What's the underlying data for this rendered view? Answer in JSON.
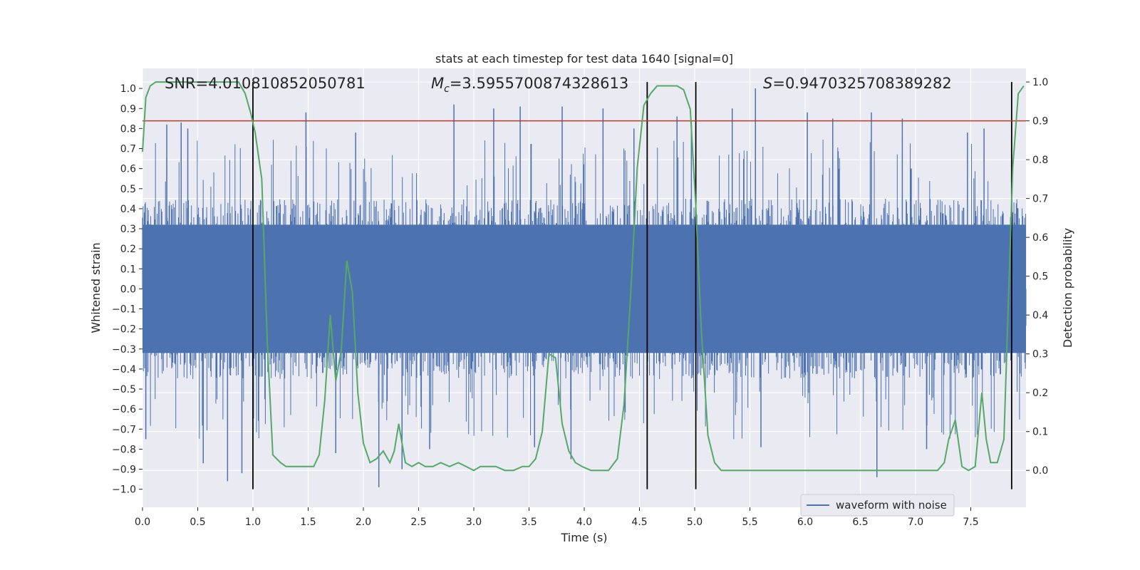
{
  "chart_data": {
    "type": "line",
    "title": "stats at each timestep for test data 1640 [signal=0]",
    "xlabel": "Time (s)",
    "ylabel_left": "Whitened strain",
    "ylabel_right": "Detection probability",
    "xlim": [
      0,
      8
    ],
    "ylim_left": [
      -1.09,
      1.1
    ],
    "ylim_right": [
      -0.095,
      1.035
    ],
    "x_ticks": [
      0.0,
      0.5,
      1.0,
      1.5,
      2.0,
      2.5,
      3.0,
      3.5,
      4.0,
      4.5,
      5.0,
      5.5,
      6.0,
      6.5,
      7.0,
      7.5
    ],
    "x_tick_labels": [
      "0.0",
      "0.5",
      "1.0",
      "1.5",
      "2.0",
      "2.5",
      "3.0",
      "3.5",
      "4.0",
      "4.5",
      "5.0",
      "5.5",
      "6.0",
      "6.5",
      "7.0",
      "7.5"
    ],
    "y_ticks_left": [
      1.0,
      0.9,
      0.8,
      0.7,
      0.6,
      0.5,
      0.4,
      0.3,
      0.2,
      0.1,
      0.0,
      -0.1,
      -0.2,
      -0.3,
      -0.4,
      -0.5,
      -0.6,
      -0.7,
      -0.8,
      -0.9,
      -1.0
    ],
    "y_tick_labels_left": [
      "1.0",
      "0.9",
      "0.8",
      "0.7",
      "0.6",
      "0.5",
      "0.4",
      "0.3",
      "0.2",
      "0.1",
      "0.0",
      "−0.1",
      "−0.2",
      "−0.3",
      "−0.4",
      "−0.5",
      "−0.6",
      "−0.7",
      "−0.8",
      "−0.9",
      "−1.0"
    ],
    "y_ticks_right": [
      1.0,
      0.9,
      0.8,
      0.7,
      0.6,
      0.5,
      0.4,
      0.3,
      0.2,
      0.1,
      0.0
    ],
    "y_tick_labels_right": [
      "1.0",
      "0.9",
      "0.8",
      "0.7",
      "0.6",
      "0.5",
      "0.4",
      "0.3",
      "0.2",
      "0.1",
      "0.0"
    ],
    "grid": true,
    "threshold": {
      "value_right": 0.9,
      "color": "#c0392b"
    },
    "vertical_lines_x": [
      1.0,
      4.57,
      5.01,
      7.87
    ],
    "annotations": {
      "snr": "SNR=4.010810852050781",
      "mc_symbol": "M",
      "mc_sub": "c",
      "mc_value": "=3.5955700874328613",
      "s_symbol": "S",
      "s_value": "=0.9470325708389282"
    },
    "legend": {
      "entries": [
        "waveform with noise"
      ],
      "location": "lower-right"
    },
    "series": [
      {
        "name": "waveform with noise",
        "color": "#4c72b0",
        "description": "whitened strain, noise-like, envelope approx ±0.45 with spikes up to ±1.0",
        "x_range": [
          0.0,
          8.0
        ],
        "amplitude_typical": 0.45,
        "spikes": [
          [
            0.03,
            -0.75
          ],
          [
            0.22,
            0.82
          ],
          [
            0.35,
            0.83
          ],
          [
            0.41,
            0.8
          ],
          [
            0.55,
            -0.87
          ],
          [
            0.77,
            -0.96
          ],
          [
            0.9,
            -0.92
          ],
          [
            1.48,
            0.88
          ],
          [
            1.75,
            -0.82
          ],
          [
            1.93,
            0.78
          ],
          [
            2.14,
            -0.99
          ],
          [
            2.35,
            -0.9
          ],
          [
            2.6,
            -0.8
          ],
          [
            2.82,
            0.92
          ],
          [
            3.18,
            0.9
          ],
          [
            3.42,
            0.91
          ],
          [
            3.55,
            -0.79
          ],
          [
            3.8,
            0.91
          ],
          [
            3.88,
            -0.85
          ],
          [
            4.17,
            0.9
          ],
          [
            4.45,
            0.8
          ],
          [
            4.84,
            0.86
          ],
          [
            4.97,
            0.84
          ],
          [
            5.34,
            0.9
          ],
          [
            5.55,
            1.0
          ],
          [
            5.6,
            -0.79
          ],
          [
            6.02,
            0.88
          ],
          [
            6.25,
            0.85
          ],
          [
            6.6,
            0.88
          ],
          [
            6.65,
            -0.94
          ],
          [
            6.88,
            0.85
          ],
          [
            7.1,
            -0.8
          ],
          [
            7.47,
            0.78
          ],
          [
            7.62,
            0.8
          ]
        ]
      },
      {
        "name": "detection probability",
        "color": "#55a868",
        "axis": "right",
        "x": [
          0.0,
          0.03,
          0.07,
          0.12,
          0.2,
          0.3,
          0.4,
          0.5,
          0.6,
          0.7,
          0.8,
          0.87,
          0.93,
          0.98,
          1.02,
          1.08,
          1.13,
          1.18,
          1.25,
          1.3,
          1.35,
          1.4,
          1.45,
          1.5,
          1.55,
          1.6,
          1.65,
          1.7,
          1.75,
          1.8,
          1.85,
          1.9,
          1.95,
          2.0,
          2.06,
          2.12,
          2.18,
          2.24,
          2.28,
          2.32,
          2.38,
          2.44,
          2.5,
          2.56,
          2.63,
          2.7,
          2.78,
          2.86,
          2.93,
          3.0,
          3.06,
          3.13,
          3.2,
          3.28,
          3.36,
          3.44,
          3.5,
          3.56,
          3.62,
          3.68,
          3.74,
          3.8,
          3.86,
          3.92,
          3.98,
          4.06,
          4.14,
          4.22,
          4.3,
          4.36,
          4.42,
          4.48,
          4.54,
          4.6,
          4.66,
          4.72,
          4.78,
          4.84,
          4.9,
          4.96,
          5.01,
          5.06,
          5.12,
          5.18,
          5.24,
          5.3,
          5.4,
          5.6,
          5.8,
          6.0,
          6.2,
          6.4,
          6.6,
          6.8,
          7.0,
          7.1,
          7.2,
          7.26,
          7.3,
          7.36,
          7.42,
          7.48,
          7.54,
          7.6,
          7.64,
          7.68,
          7.74,
          7.8,
          7.84,
          7.88,
          7.93,
          7.98
        ],
        "y": [
          0.82,
          0.96,
          0.99,
          1.0,
          1.0,
          1.0,
          1.0,
          1.0,
          1.0,
          1.0,
          1.0,
          1.0,
          0.97,
          0.92,
          0.87,
          0.75,
          0.33,
          0.04,
          0.02,
          0.01,
          0.01,
          0.01,
          0.01,
          0.01,
          0.01,
          0.04,
          0.18,
          0.4,
          0.23,
          0.31,
          0.54,
          0.46,
          0.2,
          0.07,
          0.02,
          0.03,
          0.05,
          0.02,
          0.05,
          0.12,
          0.02,
          0.01,
          0.02,
          0.01,
          0.01,
          0.02,
          0.01,
          0.02,
          0.01,
          0.0,
          0.01,
          0.01,
          0.01,
          0.0,
          0.0,
          0.01,
          0.01,
          0.03,
          0.1,
          0.3,
          0.29,
          0.12,
          0.05,
          0.02,
          0.01,
          0.0,
          0.0,
          0.0,
          0.03,
          0.17,
          0.45,
          0.78,
          0.94,
          0.97,
          0.99,
          0.99,
          0.99,
          0.99,
          0.98,
          0.93,
          0.68,
          0.36,
          0.09,
          0.02,
          0.0,
          0.0,
          0.0,
          0.0,
          0.0,
          0.0,
          0.0,
          0.0,
          0.0,
          0.0,
          0.0,
          0.0,
          0.0,
          0.02,
          0.08,
          0.13,
          0.01,
          0.0,
          0.01,
          0.2,
          0.08,
          0.02,
          0.02,
          0.08,
          0.43,
          0.78,
          0.97,
          0.99
        ]
      }
    ]
  }
}
